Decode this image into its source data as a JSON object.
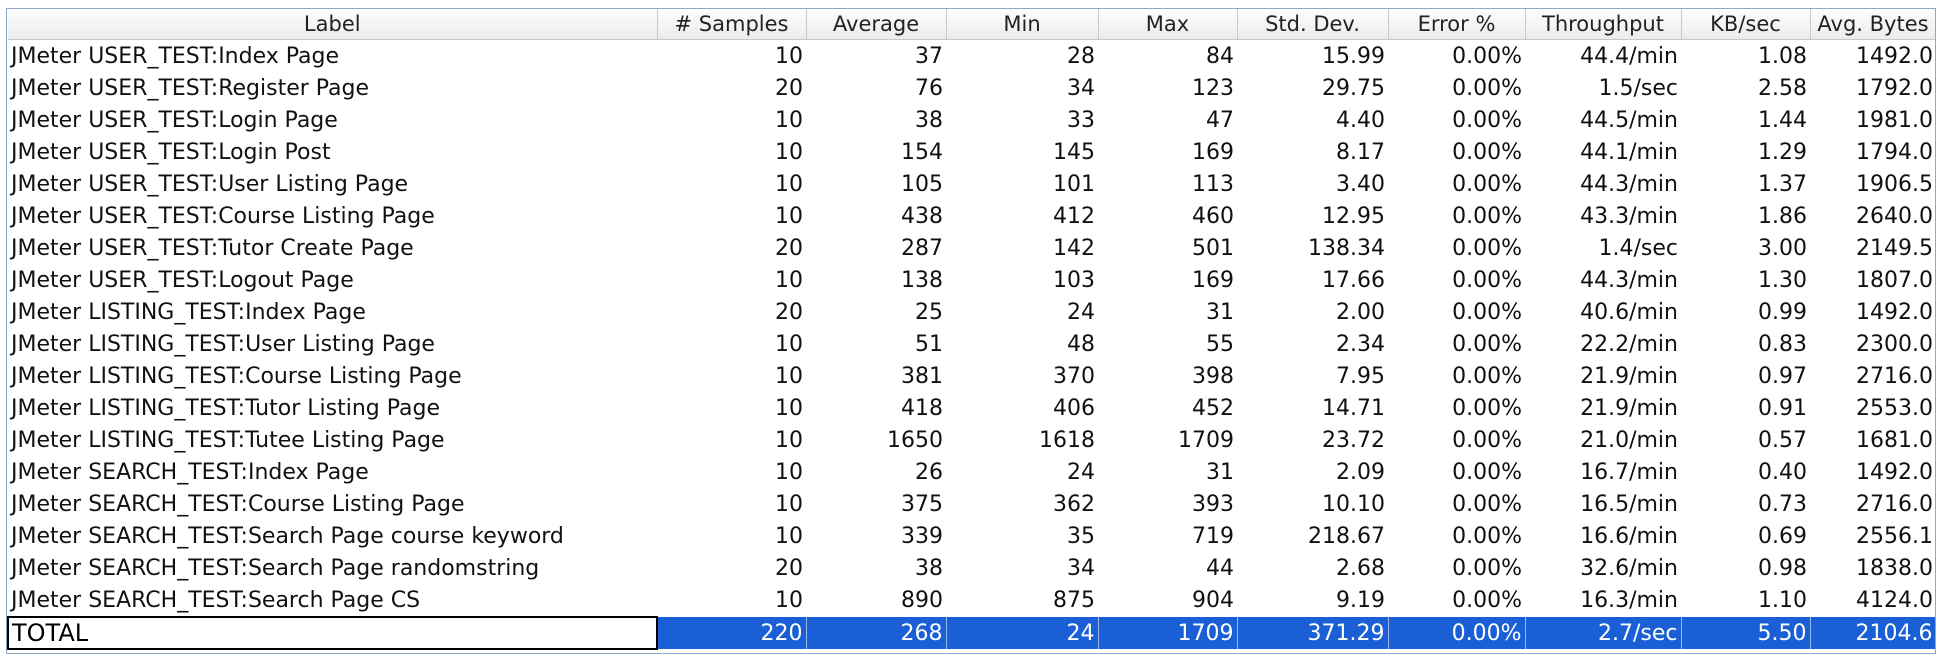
{
  "table": {
    "headers": [
      "Label",
      "# Samples",
      "Average",
      "Min",
      "Max",
      "Std. Dev.",
      "Error %",
      "Throughput",
      "KB/sec",
      "Avg. Bytes"
    ],
    "rows": [
      [
        "JMeter USER_TEST:Index Page",
        "10",
        "37",
        "28",
        "84",
        "15.99",
        "0.00%",
        "44.4/min",
        "1.08",
        "1492.0"
      ],
      [
        "JMeter USER_TEST:Register Page",
        "20",
        "76",
        "34",
        "123",
        "29.75",
        "0.00%",
        "1.5/sec",
        "2.58",
        "1792.0"
      ],
      [
        "JMeter USER_TEST:Login Page",
        "10",
        "38",
        "33",
        "47",
        "4.40",
        "0.00%",
        "44.5/min",
        "1.44",
        "1981.0"
      ],
      [
        "JMeter USER_TEST:Login Post",
        "10",
        "154",
        "145",
        "169",
        "8.17",
        "0.00%",
        "44.1/min",
        "1.29",
        "1794.0"
      ],
      [
        "JMeter USER_TEST:User Listing Page",
        "10",
        "105",
        "101",
        "113",
        "3.40",
        "0.00%",
        "44.3/min",
        "1.37",
        "1906.5"
      ],
      [
        "JMeter USER_TEST:Course Listing Page",
        "10",
        "438",
        "412",
        "460",
        "12.95",
        "0.00%",
        "43.3/min",
        "1.86",
        "2640.0"
      ],
      [
        "JMeter USER_TEST:Tutor Create Page",
        "20",
        "287",
        "142",
        "501",
        "138.34",
        "0.00%",
        "1.4/sec",
        "3.00",
        "2149.5"
      ],
      [
        "JMeter USER_TEST:Logout Page",
        "10",
        "138",
        "103",
        "169",
        "17.66",
        "0.00%",
        "44.3/min",
        "1.30",
        "1807.0"
      ],
      [
        "JMeter LISTING_TEST:Index Page",
        "20",
        "25",
        "24",
        "31",
        "2.00",
        "0.00%",
        "40.6/min",
        "0.99",
        "1492.0"
      ],
      [
        "JMeter LISTING_TEST:User Listing Page",
        "10",
        "51",
        "48",
        "55",
        "2.34",
        "0.00%",
        "22.2/min",
        "0.83",
        "2300.0"
      ],
      [
        "JMeter LISTING_TEST:Course Listing Page",
        "10",
        "381",
        "370",
        "398",
        "7.95",
        "0.00%",
        "21.9/min",
        "0.97",
        "2716.0"
      ],
      [
        "JMeter LISTING_TEST:Tutor Listing Page",
        "10",
        "418",
        "406",
        "452",
        "14.71",
        "0.00%",
        "21.9/min",
        "0.91",
        "2553.0"
      ],
      [
        "JMeter LISTING_TEST:Tutee Listing Page",
        "10",
        "1650",
        "1618",
        "1709",
        "23.72",
        "0.00%",
        "21.0/min",
        "0.57",
        "1681.0"
      ],
      [
        "JMeter SEARCH_TEST:Index Page",
        "10",
        "26",
        "24",
        "31",
        "2.09",
        "0.00%",
        "16.7/min",
        "0.40",
        "1492.0"
      ],
      [
        "JMeter SEARCH_TEST:Course Listing Page",
        "10",
        "375",
        "362",
        "393",
        "10.10",
        "0.00%",
        "16.5/min",
        "0.73",
        "2716.0"
      ],
      [
        "JMeter SEARCH_TEST:Search Page course keyword",
        "10",
        "339",
        "35",
        "719",
        "218.67",
        "0.00%",
        "16.6/min",
        "0.69",
        "2556.1"
      ],
      [
        "JMeter SEARCH_TEST:Search Page randomstring",
        "20",
        "38",
        "34",
        "44",
        "2.68",
        "0.00%",
        "32.6/min",
        "0.98",
        "1838.0"
      ],
      [
        "JMeter SEARCH_TEST:Search Page CS",
        "10",
        "890",
        "875",
        "904",
        "9.19",
        "0.00%",
        "16.3/min",
        "1.10",
        "4124.0"
      ]
    ],
    "total": [
      "TOTAL",
      "220",
      "268",
      "24",
      "1709",
      "371.29",
      "0.00%",
      "2.7/sec",
      "5.50",
      "2104.6"
    ]
  },
  "colors": {
    "selection": "#1a5fd6",
    "header_bg": "#ececec",
    "border": "#8fa7c8"
  }
}
